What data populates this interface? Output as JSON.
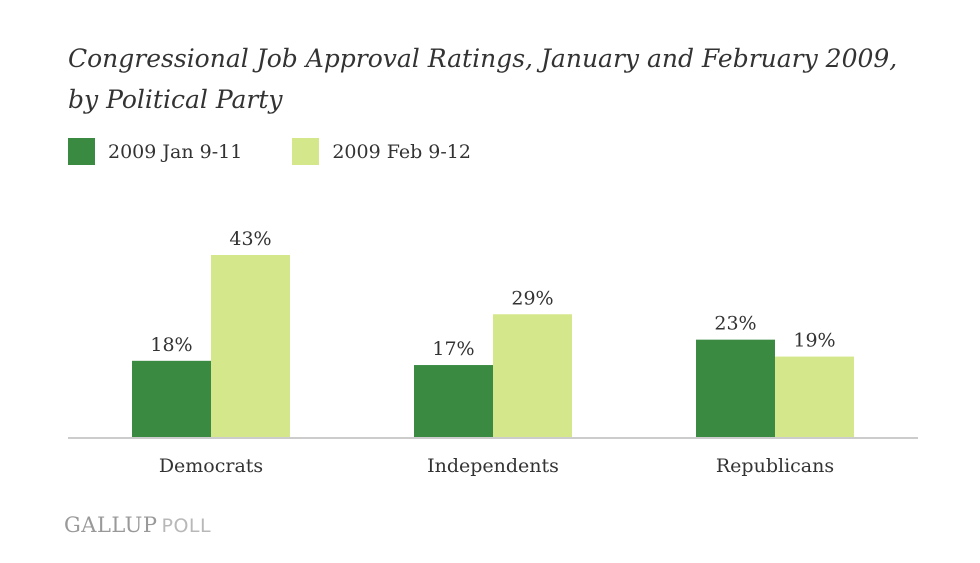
{
  "title_line1": "Congressional Job Approval Ratings, January and February 2009,",
  "title_line2": "by Political Party",
  "footer": {
    "brand": "GALLUP",
    "product": "POLL"
  },
  "colors": {
    "series1": "#3a8a42",
    "series2": "#d4e78a",
    "axis": "#cccccc",
    "text": "#333333"
  },
  "chart_data": {
    "type": "bar",
    "title": "Congressional Job Approval Ratings, January and February 2009, by Political Party",
    "categories": [
      "Democrats",
      "Independents",
      "Republicans"
    ],
    "series": [
      {
        "name": "2009 Jan 9-11",
        "values": [
          18,
          17,
          23
        ],
        "labels": [
          "18%",
          "17%",
          "23%"
        ]
      },
      {
        "name": "2009 Feb 9-12",
        "values": [
          43,
          29,
          19
        ],
        "labels": [
          "43%",
          "29%",
          "19%"
        ]
      }
    ],
    "xlabel": "",
    "ylabel": "",
    "ylim": [
      0,
      43
    ],
    "grid": false,
    "legend": "top-left"
  }
}
